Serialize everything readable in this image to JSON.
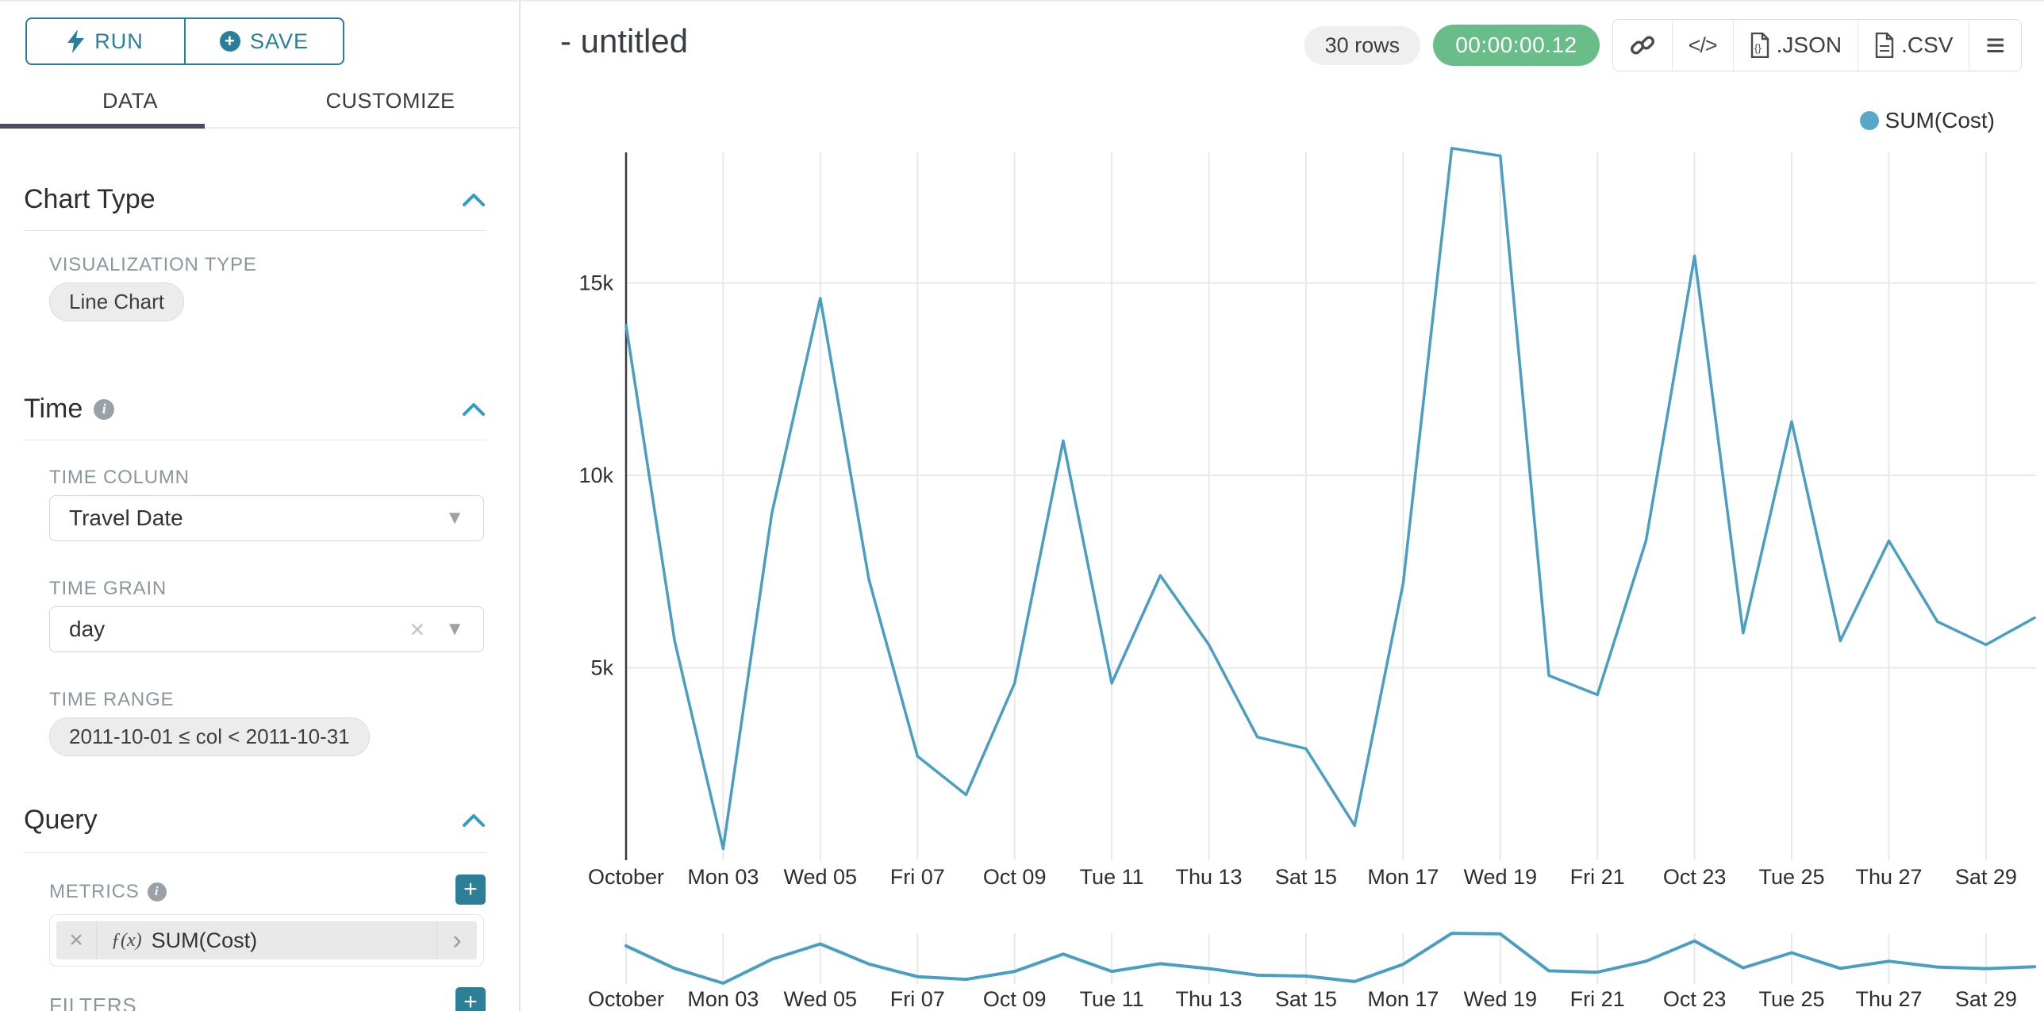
{
  "sidebar": {
    "run_label": "RUN",
    "save_label": "SAVE",
    "tabs": [
      {
        "label": "DATA",
        "active": true
      },
      {
        "label": "CUSTOMIZE",
        "active": false
      }
    ],
    "chart_type": {
      "title": "Chart Type",
      "viz_label": "VISUALIZATION TYPE",
      "viz_value": "Line Chart"
    },
    "time": {
      "title": "Time",
      "column_label": "TIME COLUMN",
      "column_value": "Travel Date",
      "grain_label": "TIME GRAIN",
      "grain_value": "day",
      "range_label": "TIME RANGE",
      "range_value": "2011-10-01 ≤ col < 2011-10-31"
    },
    "query": {
      "title": "Query",
      "metrics_label": "METRICS",
      "metric_fx": "ƒ(x)",
      "metric_value": "SUM(Cost)",
      "filters_label": "FILTERS"
    }
  },
  "header": {
    "title": "- untitled",
    "rows_badge": "30 rows",
    "timer_badge": "00:00:00.12",
    "embed_glyph": "</>",
    "json_label": ".JSON",
    "csv_label": ".CSV",
    "menu_glyph": "≡"
  },
  "legend": {
    "label": "SUM(Cost)"
  },
  "colors": {
    "accent_teal": "#27809b",
    "tab_underline": "#484d65",
    "timer_green": "#69bd89",
    "series_blue": "#4a9ec2",
    "legend_dot": "#57a9c7",
    "gridline": "#e8e8e8",
    "axis_dark": "#3b3b3b"
  },
  "chart_data": {
    "type": "line",
    "title": "",
    "x_days_of_october_2011": [
      1,
      2,
      3,
      4,
      5,
      6,
      7,
      8,
      9,
      10,
      11,
      12,
      13,
      14,
      15,
      16,
      17,
      18,
      19,
      20,
      21,
      22,
      23,
      24,
      25,
      26,
      27,
      28,
      29,
      30
    ],
    "series": [
      {
        "name": "SUM(Cost)",
        "color": "#4a9ec2",
        "values": [
          13900,
          5700,
          300,
          9000,
          14600,
          7300,
          2700,
          1700,
          4600,
          10900,
          4600,
          7400,
          5600,
          3200,
          2900,
          900,
          7200,
          18500,
          18300,
          4800,
          4300,
          8300,
          15700,
          5900,
          11400,
          5700,
          8300,
          6200,
          5600,
          6300
        ]
      }
    ],
    "x_tick_labels": [
      "October",
      "Mon 03",
      "Wed 05",
      "Fri 07",
      "Oct 09",
      "Tue 11",
      "Thu 13",
      "Sat 15",
      "Mon 17",
      "Wed 19",
      "Fri 21",
      "Oct 23",
      "Tue 25",
      "Thu 27",
      "Sat 29"
    ],
    "y_ticks": [
      {
        "value": 5000,
        "label": "5k"
      },
      {
        "value": 10000,
        "label": "10k"
      },
      {
        "value": 15000,
        "label": "15k"
      }
    ],
    "ylim": [
      0,
      18500
    ],
    "grid": true,
    "legend_position": "top-right",
    "has_mini_brush_chart": true,
    "mini_chart_x_tick_labels": [
      "October",
      "Mon 03",
      "Wed 05",
      "Fri 07",
      "Oct 09",
      "Tue 11",
      "Thu 13",
      "Sat 15",
      "Mon 17",
      "Wed 19",
      "Fri 21",
      "Oct 23",
      "Tue 25",
      "Thu 27",
      "Sat 29"
    ]
  }
}
